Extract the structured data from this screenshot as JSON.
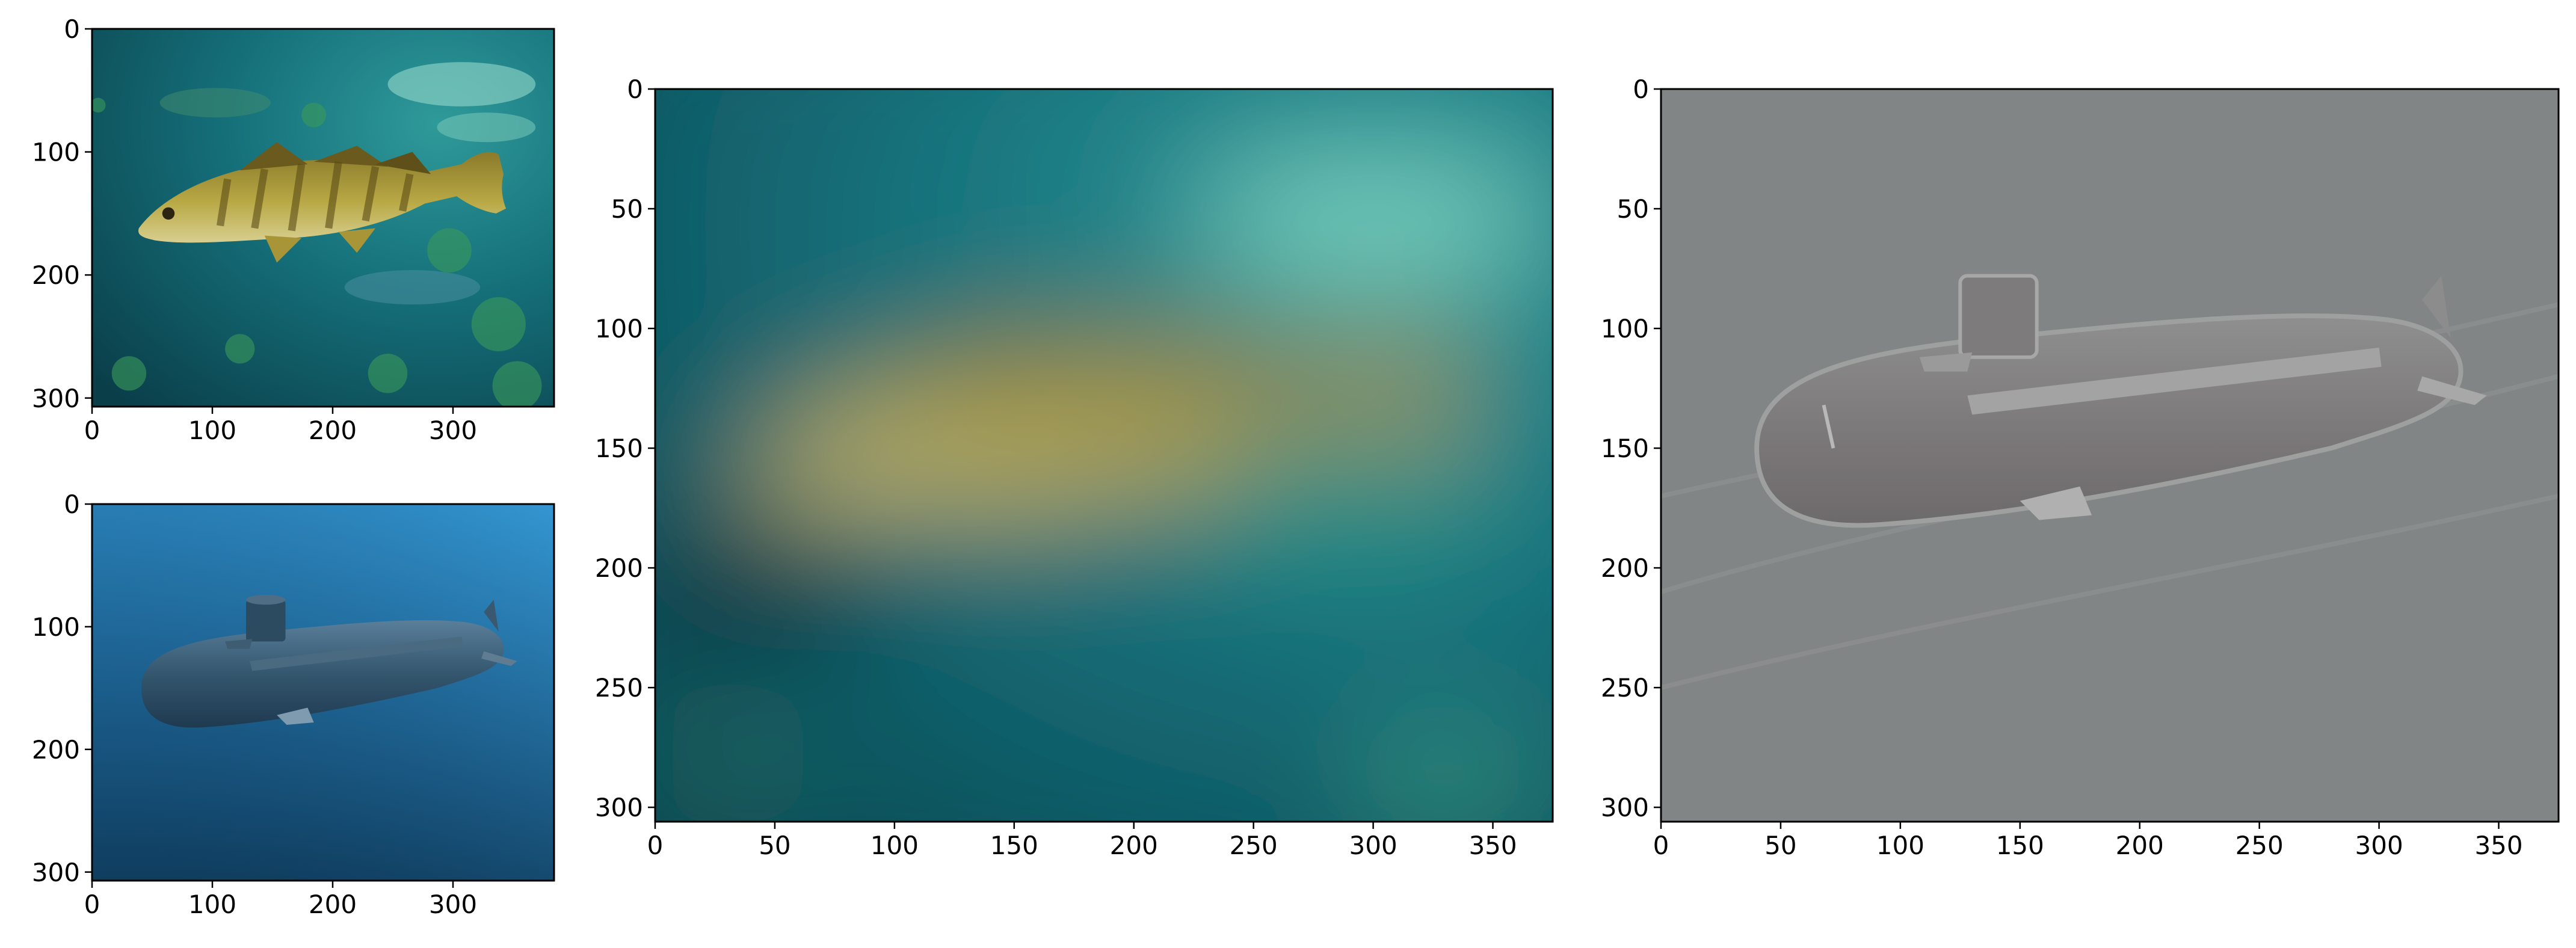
{
  "figure": {
    "panels": [
      {
        "name": "fish-panel",
        "content": "fish",
        "xticks": [
          "0",
          "100",
          "200",
          "300"
        ],
        "yticks": [
          "0",
          "100",
          "200",
          "300"
        ]
      },
      {
        "name": "submarine-panel",
        "content": "submarine",
        "xticks": [
          "0",
          "100",
          "200",
          "300"
        ],
        "yticks": [
          "0",
          "100",
          "200",
          "300"
        ]
      },
      {
        "name": "lowpass-fish-panel",
        "content": "blurred-fish",
        "xticks": [
          "0",
          "50",
          "100",
          "150",
          "200",
          "250",
          "300",
          "350"
        ],
        "yticks": [
          "0",
          "50",
          "100",
          "150",
          "200",
          "250",
          "300"
        ]
      },
      {
        "name": "highpass-submarine-panel",
        "content": "gray-submarine",
        "xticks": [
          "0",
          "50",
          "100",
          "150",
          "200",
          "250",
          "300",
          "350"
        ],
        "yticks": [
          "0",
          "50",
          "100",
          "150",
          "200",
          "250",
          "300"
        ]
      }
    ]
  }
}
